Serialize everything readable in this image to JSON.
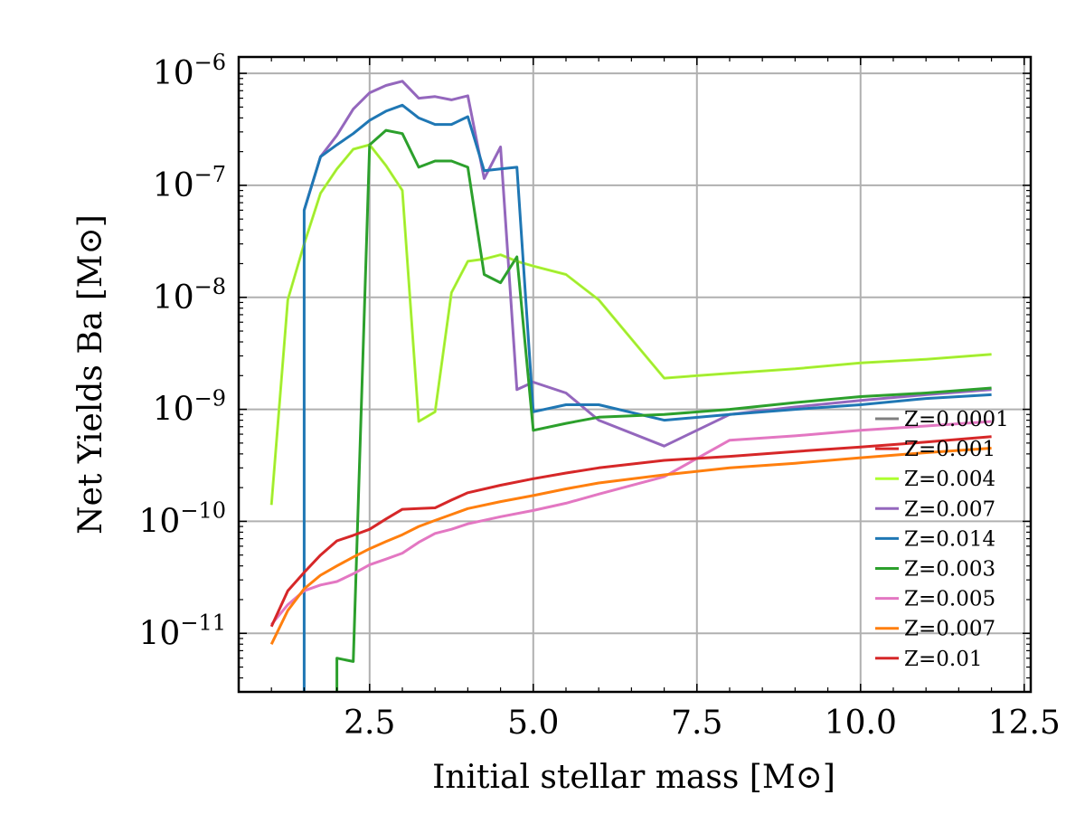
{
  "chart_data": {
    "type": "line",
    "title": "",
    "xlabel": "Initial stellar mass [M⊙]",
    "ylabel": "Net Yields Ba [M⊙]",
    "xlim": [
      0.5,
      12.6
    ],
    "ylim": [
      3e-12,
      1.4e-06
    ],
    "yscale": "log",
    "grid": true,
    "legend_position": "right",
    "x_ticks": [
      2.5,
      5.0,
      7.5,
      10.0,
      12.5
    ],
    "x_tick_labels": [
      "2.5",
      "5.0",
      "7.5",
      "10.0",
      "12.5"
    ],
    "y_ticks": [
      {
        "value": 1e-11,
        "base": "10",
        "exp": "−11"
      },
      {
        "value": 1e-10,
        "base": "10",
        "exp": "−10"
      },
      {
        "value": 1e-09,
        "base": "10",
        "exp": "−9"
      },
      {
        "value": 1e-08,
        "base": "10",
        "exp": "−8"
      },
      {
        "value": 1e-07,
        "base": "10",
        "exp": "−7"
      },
      {
        "value": 1e-06,
        "base": "10",
        "exp": "−6"
      }
    ],
    "series": [
      {
        "name": "Z=0.0001",
        "color": "#7f7f7f",
        "x": [],
        "y": []
      },
      {
        "name": "Z=0.001",
        "color": "#d62728",
        "x": [],
        "y": []
      },
      {
        "name": "Z=0.004",
        "color": "#adff2f",
        "x": [
          1.0,
          1.25,
          1.5,
          1.75,
          2.0,
          2.25,
          2.5,
          2.75,
          3.0,
          3.25,
          3.5,
          3.75,
          4.0,
          4.25,
          4.5,
          4.75,
          5.0,
          5.5,
          6.0,
          7.0,
          8.0,
          9.0,
          10.0,
          11.0,
          12.0
        ],
        "y": [
          1.4e-10,
          9.5e-09,
          3e-08,
          8.5e-08,
          1.4e-07,
          2.1e-07,
          2.3e-07,
          1.5e-07,
          9e-08,
          7.8e-10,
          9.5e-10,
          1.1e-08,
          2.1e-08,
          2.2e-08,
          2.4e-08,
          2.1e-08,
          1.9e-08,
          1.6e-08,
          9.5e-09,
          1.9e-09,
          2.1e-09,
          2.3e-09,
          2.6e-09,
          2.8e-09,
          3.1e-09
        ]
      },
      {
        "name": "Z=0.007",
        "color": "#9467bd",
        "x": [
          1.5,
          1.75,
          2.0,
          2.25,
          2.5,
          2.75,
          3.0,
          3.25,
          3.5,
          3.75,
          4.0,
          4.25,
          4.5,
          4.75,
          5.0,
          5.5,
          6.0,
          7.0,
          8.0,
          9.0,
          10.0,
          11.0,
          12.0
        ],
        "y": [
          6e-08,
          1.8e-07,
          2.8e-07,
          4.8e-07,
          6.7e-07,
          7.8e-07,
          8.5e-07,
          6e-07,
          6.2e-07,
          5.8e-07,
          6.3e-07,
          1.15e-07,
          2.2e-07,
          1.5e-09,
          1.75e-09,
          1.4e-09,
          8e-10,
          4.7e-10,
          9e-10,
          1.05e-09,
          1.2e-09,
          1.35e-09,
          1.5e-09
        ]
      },
      {
        "name": "Z=0.014",
        "color": "#1f77b4",
        "x": [
          1.5,
          1.5,
          1.75,
          2.0,
          2.25,
          2.5,
          2.75,
          3.0,
          3.25,
          3.5,
          3.75,
          4.0,
          4.25,
          4.5,
          4.75,
          5.0,
          5.5,
          6.0,
          7.0,
          8.0,
          9.0,
          10.0,
          11.0,
          12.0
        ],
        "y": [
          3e-12,
          6e-08,
          1.8e-07,
          2.3e-07,
          2.9e-07,
          3.8e-07,
          4.6e-07,
          5.2e-07,
          4e-07,
          3.5e-07,
          3.5e-07,
          4.1e-07,
          1.35e-07,
          1.4e-07,
          1.45e-07,
          9.5e-10,
          1.1e-09,
          1.1e-09,
          8e-10,
          9e-10,
          1e-09,
          1.1e-09,
          1.25e-09,
          1.35e-09
        ]
      },
      {
        "name": "Z=0.003",
        "color": "#2ca02c",
        "x": [
          2.0,
          2.0,
          2.25,
          2.5,
          2.75,
          3.0,
          3.25,
          3.5,
          3.75,
          4.0,
          4.25,
          4.5,
          4.75,
          5.0,
          5.5,
          6.0,
          7.0,
          8.0,
          9.0,
          10.0,
          11.0,
          12.0
        ],
        "y": [
          3e-12,
          6e-12,
          5.6e-12,
          2.3e-07,
          3.1e-07,
          2.9e-07,
          1.45e-07,
          1.65e-07,
          1.65e-07,
          1.45e-07,
          1.6e-08,
          1.35e-08,
          2.3e-08,
          6.5e-10,
          7.5e-10,
          8.5e-10,
          9e-10,
          1e-09,
          1.15e-09,
          1.3e-09,
          1.4e-09,
          1.55e-09
        ]
      },
      {
        "name": "Z=0.005",
        "color": "#e377c2",
        "x": [
          1.0,
          1.25,
          1.5,
          1.75,
          2.0,
          2.25,
          2.5,
          2.75,
          3.0,
          3.25,
          3.5,
          3.75,
          4.0,
          4.5,
          5.0,
          5.5,
          6.0,
          7.0,
          8.0,
          9.0,
          10.0,
          11.0,
          12.0
        ],
        "y": [
          1.2e-11,
          1.8e-11,
          2.4e-11,
          2.7e-11,
          2.9e-11,
          3.4e-11,
          4.1e-11,
          4.6e-11,
          5.2e-11,
          6.5e-11,
          7.8e-11,
          8.5e-11,
          9.5e-11,
          1.1e-10,
          1.25e-10,
          1.45e-10,
          1.75e-10,
          2.5e-10,
          5.3e-10,
          5.8e-10,
          6.5e-10,
          7.1e-10,
          7.8e-10
        ]
      },
      {
        "name": "Z=0.007",
        "color": "#ff7f0e",
        "x": [
          1.0,
          1.25,
          1.5,
          1.75,
          2.0,
          2.25,
          2.5,
          2.75,
          3.0,
          3.25,
          3.5,
          3.75,
          4.0,
          4.5,
          5.0,
          5.5,
          6.0,
          7.0,
          8.0,
          9.0,
          10.0,
          11.0,
          12.0
        ],
        "y": [
          8e-12,
          1.6e-11,
          2.5e-11,
          3.3e-11,
          4e-11,
          4.8e-11,
          5.7e-11,
          6.6e-11,
          7.6e-11,
          9e-11,
          1.02e-10,
          1.15e-10,
          1.3e-10,
          1.5e-10,
          1.7e-10,
          1.95e-10,
          2.2e-10,
          2.6e-10,
          3e-10,
          3.3e-10,
          3.7e-10,
          4.1e-10,
          4.5e-10
        ]
      },
      {
        "name": "Z=0.01",
        "color": "#d62728",
        "x": [
          1.0,
          1.25,
          1.5,
          1.75,
          2.0,
          2.25,
          2.5,
          2.75,
          3.0,
          3.25,
          3.5,
          3.75,
          4.0,
          4.5,
          5.0,
          5.5,
          6.0,
          7.0,
          8.0,
          9.0,
          10.0,
          11.0,
          12.0
        ],
        "y": [
          1.15e-11,
          2.4e-11,
          3.5e-11,
          5e-11,
          6.7e-11,
          7.5e-11,
          8.5e-11,
          1.05e-10,
          1.28e-10,
          1.3e-10,
          1.32e-10,
          1.55e-10,
          1.8e-10,
          2.1e-10,
          2.4e-10,
          2.7e-10,
          3e-10,
          3.5e-10,
          3.8e-10,
          4.2e-10,
          4.6e-10,
          5.1e-10,
          5.7e-10
        ]
      }
    ]
  }
}
